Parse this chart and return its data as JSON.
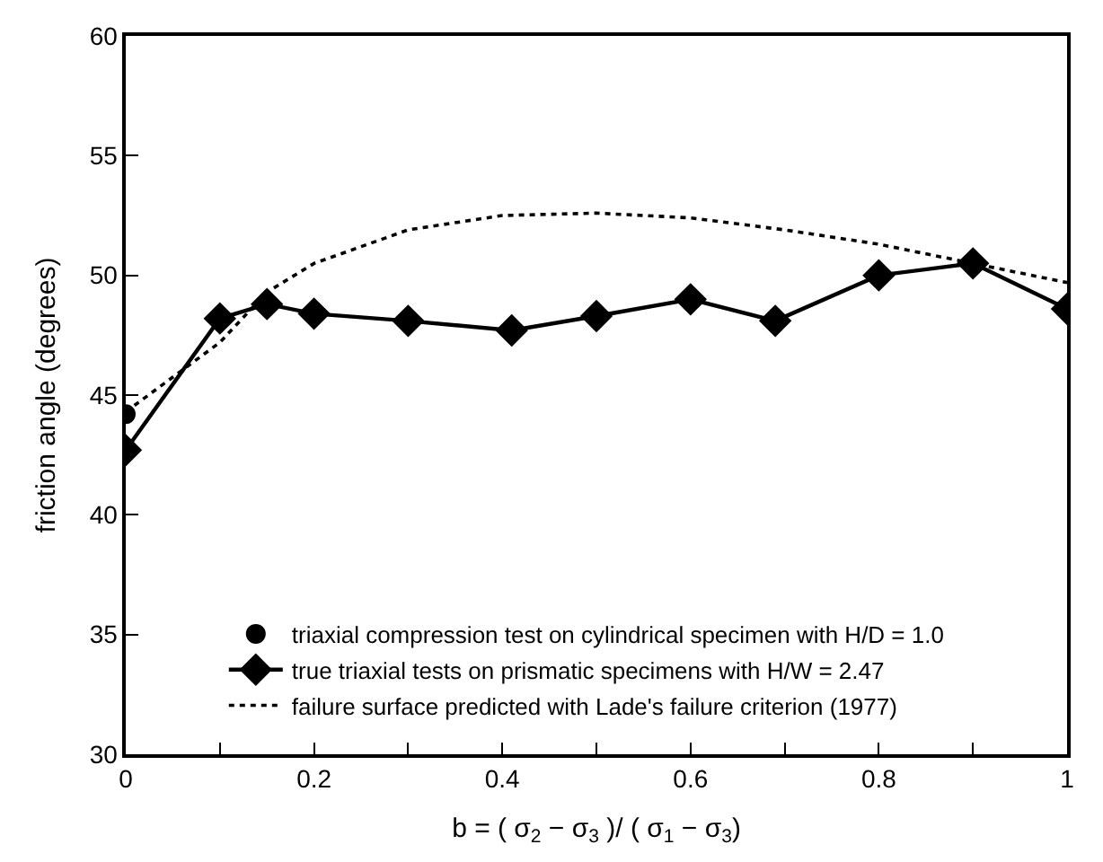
{
  "chart_data": {
    "type": "line",
    "xlabel": "b = ( σ$_{2}$ − σ$_{3}$ )/ ( σ$_{1}$ − σ$_{3}$)",
    "ylabel": "friction angle (degrees)",
    "xlim": [
      0,
      1
    ],
    "ylim": [
      30,
      60
    ],
    "xticks": [
      0,
      {
        "value": 0.1,
        "label": null
      },
      0.2,
      {
        "value": 0.3,
        "label": null
      },
      0.4,
      {
        "value": 0.5,
        "label": null
      },
      0.6,
      {
        "value": 0.7,
        "label": null
      },
      0.8,
      {
        "value": 0.9,
        "label": null
      },
      1
    ],
    "yticks": [
      30,
      35,
      40,
      45,
      50,
      55,
      60
    ],
    "legend": "bottom",
    "series": [
      {
        "name": "triaxial compression test on cylindrical specimen with H/D = 1.0",
        "color": "#000000",
        "type": "scatter",
        "marker": "circle",
        "x": [
          0
        ],
        "values": [
          44.2
        ]
      },
      {
        "name": "true triaxial tests on prismatic specimens with H/W = 2.47",
        "color": "#000000",
        "marker": "diamond",
        "line_style": "solid",
        "x": [
          0,
          0.1,
          0.15,
          0.2,
          0.3,
          0.41,
          0.5,
          0.6,
          0.69,
          0.8,
          0.9,
          1.0
        ],
        "values": [
          42.7,
          48.2,
          48.8,
          48.4,
          48.1,
          47.7,
          48.3,
          49.0,
          48.1,
          50.0,
          50.5,
          48.6
        ]
      },
      {
        "name": "failure surface predicted with Lade's failure criterion (1977)",
        "color": "#000000",
        "marker": "none",
        "line_style": "dotted",
        "x": [
          0,
          0.1,
          0.15,
          0.2,
          0.3,
          0.4,
          0.5,
          0.6,
          0.7,
          0.8,
          0.9,
          1.0
        ],
        "values": [
          44.3,
          47.2,
          49.3,
          50.5,
          51.9,
          52.5,
          52.6,
          52.4,
          51.9,
          51.3,
          50.5,
          49.7
        ]
      }
    ]
  }
}
